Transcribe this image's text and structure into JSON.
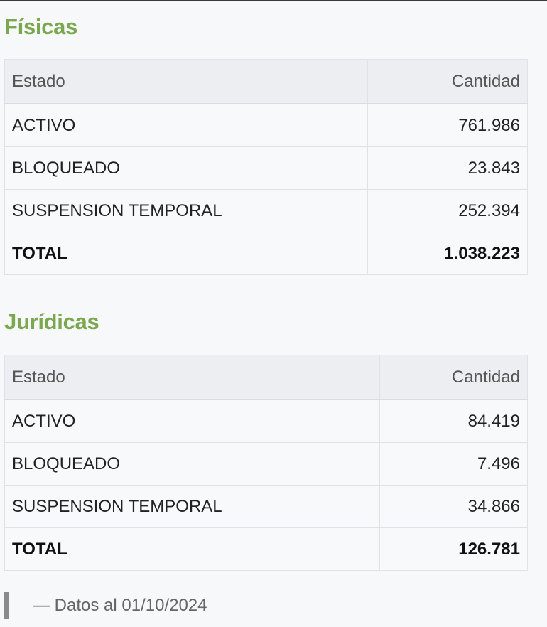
{
  "fisicas": {
    "title": "Físicas",
    "headers": {
      "estado": "Estado",
      "cantidad": "Cantidad"
    },
    "rows": [
      {
        "estado": "ACTIVO",
        "cantidad": "761.986"
      },
      {
        "estado": "BLOQUEADO",
        "cantidad": "23.843"
      },
      {
        "estado": "SUSPENSION TEMPORAL",
        "cantidad": "252.394"
      }
    ],
    "total": {
      "estado": "TOTAL",
      "cantidad": "1.038.223"
    }
  },
  "juridicas": {
    "title": "Jurídicas",
    "headers": {
      "estado": "Estado",
      "cantidad": "Cantidad"
    },
    "rows": [
      {
        "estado": "ACTIVO",
        "cantidad": "84.419"
      },
      {
        "estado": "BLOQUEADO",
        "cantidad": "7.496"
      },
      {
        "estado": "SUSPENSION TEMPORAL",
        "cantidad": "34.866"
      }
    ],
    "total": {
      "estado": "TOTAL",
      "cantidad": "126.781"
    }
  },
  "footnote": {
    "text": "— Datos al 01/10/2024"
  },
  "colors": {
    "heading": "#7aa84f",
    "background": "#f6f8fa",
    "table_header_bg": "#eceef1",
    "border": "#dfe2e6"
  }
}
